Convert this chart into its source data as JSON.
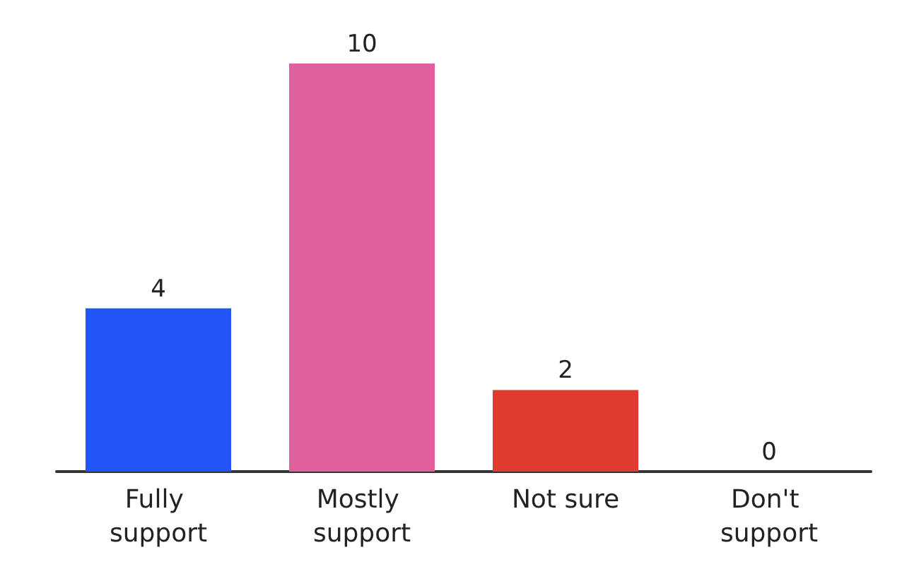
{
  "chart_data": {
    "type": "bar",
    "categories": [
      "Fully support",
      "Mostly support",
      "Not sure",
      "Don't support"
    ],
    "values": [
      4,
      10,
      2,
      0
    ],
    "colors": [
      "#2155f5",
      "#e0609e",
      "#de3a2e",
      "#888888"
    ],
    "data_labels": true
  }
}
